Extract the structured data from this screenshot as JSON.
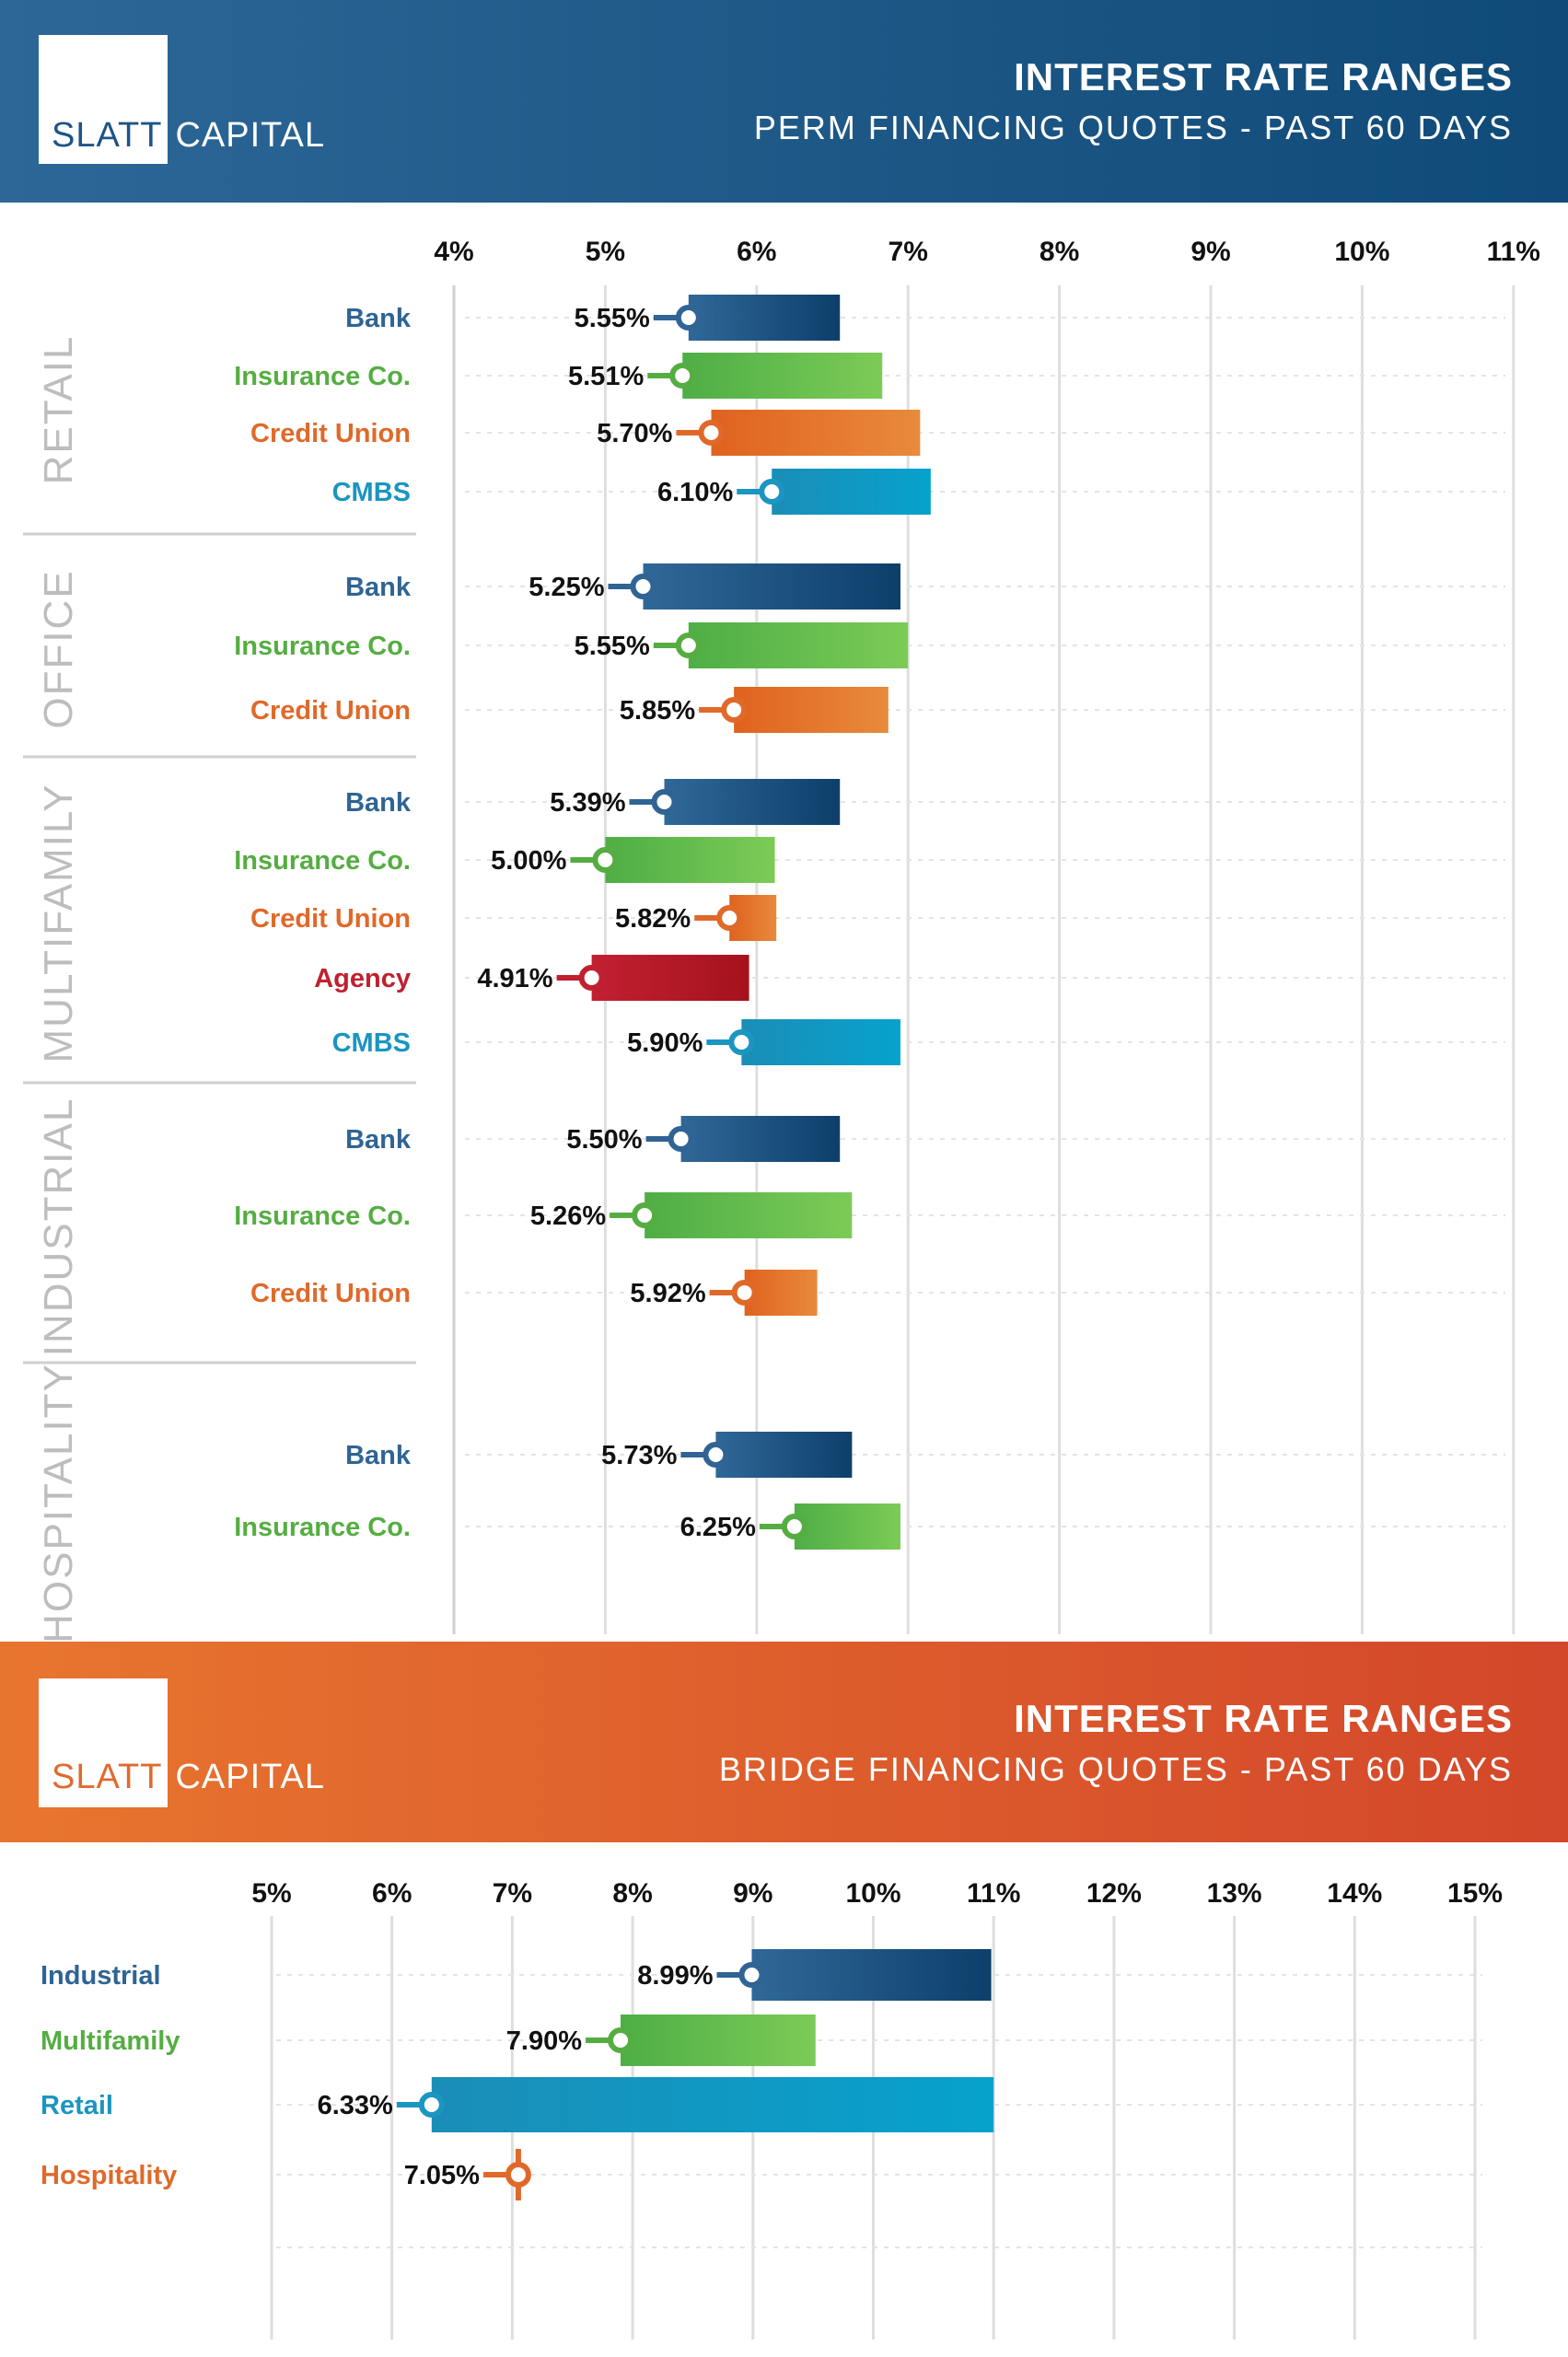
{
  "brand": {
    "part1": "SLATT",
    "part2": "CAPITAL"
  },
  "colors": {
    "Bank": [
      "#2f6897",
      "#0d3f6b"
    ],
    "Insurance Co.": [
      "#4eae45",
      "#7ccb57"
    ],
    "Credit Union": [
      "#e0621f",
      "#e88a3c"
    ],
    "CMBS": [
      "#1a8eb7",
      "#06a2cd"
    ],
    "Agency": [
      "#c22032",
      "#a5121c"
    ],
    "Industrial": [
      "#2f6897",
      "#0d3f6b"
    ],
    "Multifamily": [
      "#4eae45",
      "#7ccb57"
    ],
    "Retail": [
      "#1a8eb7",
      "#06a2cd"
    ],
    "Hospitality": [
      "#e0621f",
      "#e88a3c"
    ],
    "label": {
      "Bank": "#2f6494",
      "Insurance Co.": "#55ad42",
      "Credit Union": "#e0692a",
      "CMBS": "#1b95c1",
      "Agency": "#c0202f",
      "Industrial": "#2f6494",
      "Multifamily": "#55ad42",
      "Retail": "#1b95c1",
      "Hospitality": "#e0692a"
    }
  },
  "chart_data": [
    {
      "type": "bar",
      "orientation": "horizontal range",
      "title": "INTEREST RATE RANGES",
      "subtitle": "PERM FINANCING QUOTES - PAST 60 DAYS",
      "xlim": [
        4,
        11
      ],
      "ticks": [
        "4%",
        "5%",
        "6%",
        "7%",
        "8%",
        "9%",
        "10%",
        "11%"
      ],
      "groups": [
        {
          "sector": "RETAIL",
          "rows": [
            {
              "lender": "Bank",
              "low": 5.55,
              "high": 6.55,
              "label": "5.55%"
            },
            {
              "lender": "Insurance Co.",
              "low": 5.51,
              "high": 6.83,
              "label": "5.51%"
            },
            {
              "lender": "Credit Union",
              "low": 5.7,
              "high": 7.08,
              "label": "5.70%"
            },
            {
              "lender": "CMBS",
              "low": 6.1,
              "high": 7.15,
              "label": "6.10%"
            }
          ]
        },
        {
          "sector": "OFFICE",
          "rows": [
            {
              "lender": "Bank",
              "low": 5.25,
              "high": 6.95,
              "label": "5.25%"
            },
            {
              "lender": "Insurance Co.",
              "low": 5.55,
              "high": 7.0,
              "label": "5.55%"
            },
            {
              "lender": "Credit Union",
              "low": 5.85,
              "high": 6.87,
              "label": "5.85%"
            }
          ]
        },
        {
          "sector": "MULTIFAMILY",
          "rows": [
            {
              "lender": "Bank",
              "low": 5.39,
              "high": 6.55,
              "label": "5.39%"
            },
            {
              "lender": "Insurance Co.",
              "low": 5.0,
              "high": 6.12,
              "label": "5.00%"
            },
            {
              "lender": "Credit Union",
              "low": 5.82,
              "high": 6.13,
              "label": "5.82%"
            },
            {
              "lender": "Agency",
              "low": 4.91,
              "high": 5.95,
              "label": "4.91%"
            },
            {
              "lender": "CMBS",
              "low": 5.9,
              "high": 6.95,
              "label": "5.90%"
            }
          ]
        },
        {
          "sector": "INDUSTRIAL",
          "rows": [
            {
              "lender": "Bank",
              "low": 5.5,
              "high": 6.55,
              "label": "5.50%"
            },
            {
              "lender": "Insurance Co.",
              "low": 5.26,
              "high": 6.63,
              "label": "5.26%"
            },
            {
              "lender": "Credit Union",
              "low": 5.92,
              "high": 6.4,
              "label": "5.92%"
            }
          ]
        },
        {
          "sector": "HOSPITALITY",
          "rows": [
            {
              "lender": "Bank",
              "low": 5.73,
              "high": 6.63,
              "label": "5.73%"
            },
            {
              "lender": "Insurance Co.",
              "low": 6.25,
              "high": 6.95,
              "label": "6.25%"
            }
          ]
        }
      ]
    },
    {
      "type": "bar",
      "orientation": "horizontal range",
      "title": "INTEREST RATE RANGES",
      "subtitle": "BRIDGE FINANCING QUOTES - PAST 60 DAYS",
      "xlim": [
        5,
        15
      ],
      "ticks": [
        "5%",
        "6%",
        "7%",
        "8%",
        "9%",
        "10%",
        "11%",
        "12%",
        "13%",
        "14%",
        "15%"
      ],
      "rows": [
        {
          "category": "Industrial",
          "low": 8.99,
          "high": 10.98,
          "label": "8.99%"
        },
        {
          "category": "Multifamily",
          "low": 7.9,
          "high": 9.52,
          "label": "7.90%"
        },
        {
          "category": "Retail",
          "low": 6.33,
          "high": 11.0,
          "label": "6.33%"
        },
        {
          "category": "Hospitality",
          "low": 7.05,
          "high": 7.05,
          "label": "7.05%"
        }
      ]
    }
  ]
}
